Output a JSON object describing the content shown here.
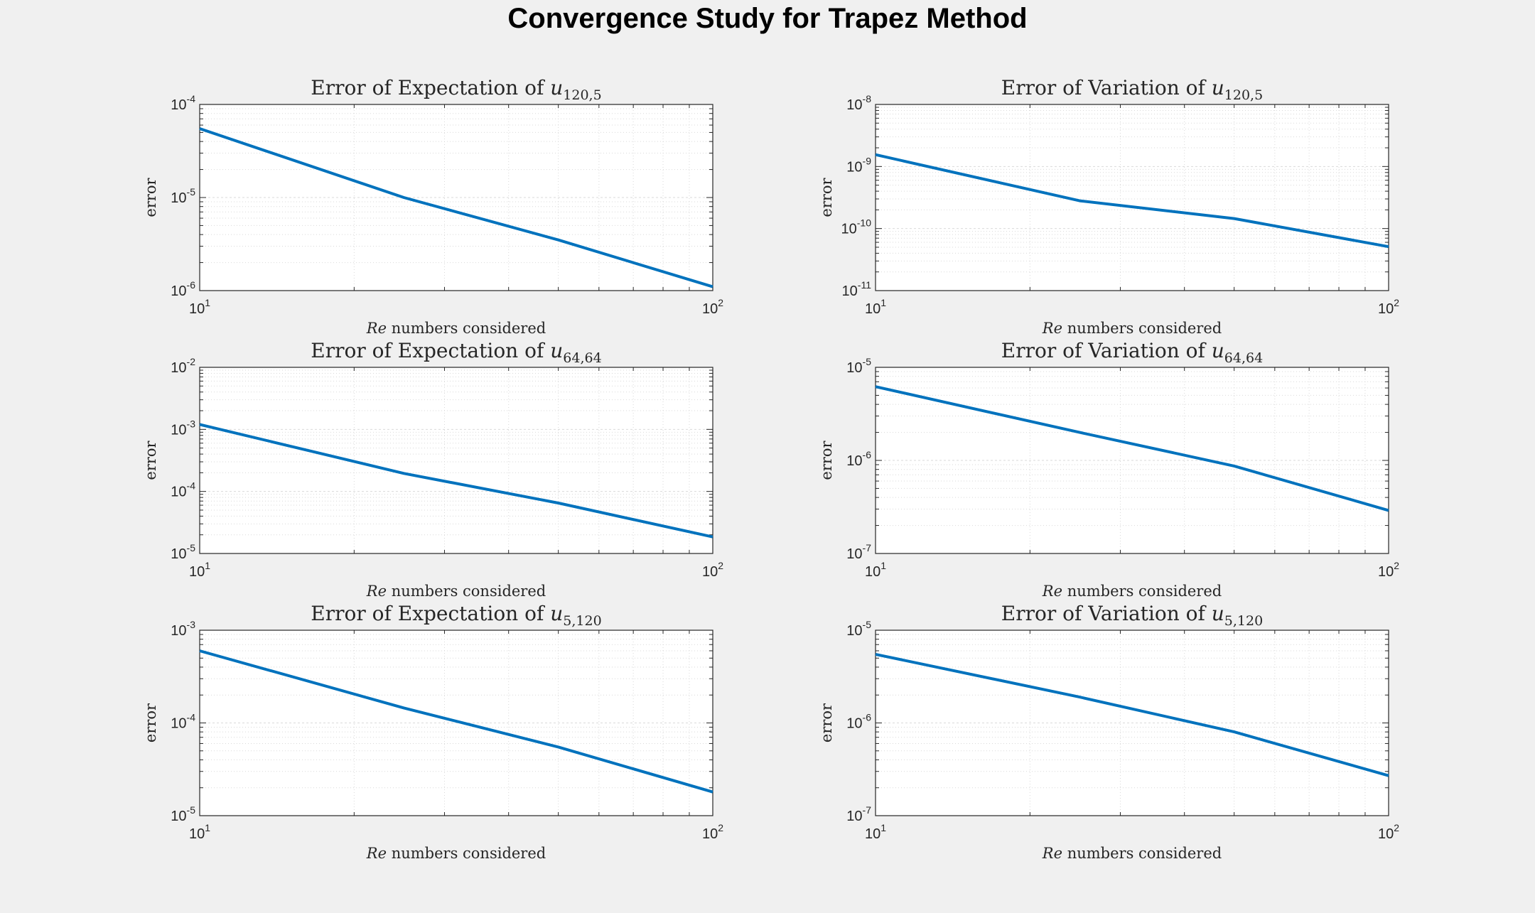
{
  "figure": {
    "title": "Convergence Study for Trapez Method"
  },
  "colors": {
    "background": "#f0f0f0",
    "axes_background": "#ffffff",
    "line": "#0072bd",
    "grid": "#d9d9d9",
    "axes_edge": "#262626"
  },
  "chart_data": [
    {
      "type": "line",
      "title_prefix": "Error of Expectation of ",
      "title_var": "u",
      "title_sub": "120,5",
      "xlabel_var": "Re",
      "xlabel_rest": " numbers considered",
      "ylabel": "error",
      "xscale": "log",
      "yscale": "log",
      "xlim": [
        10,
        100
      ],
      "ylim": [
        1e-06,
        0.0001
      ],
      "xticks": [
        {
          "base": "10",
          "exp": "1"
        },
        {
          "base": "10",
          "exp": "2"
        }
      ],
      "yticks": [
        {
          "base": "10",
          "exp": "-6"
        },
        {
          "base": "10",
          "exp": "-5"
        },
        {
          "base": "10",
          "exp": "-4"
        }
      ],
      "grid": true,
      "series": [
        {
          "x": [
            10,
            25,
            50,
            100
          ],
          "y": [
            5.5e-05,
            1e-05,
            3.5e-06,
            1.1e-06
          ]
        }
      ]
    },
    {
      "type": "line",
      "title_prefix": "Error of Variation of ",
      "title_var": "u",
      "title_sub": "120,5",
      "xlabel_var": "Re",
      "xlabel_rest": " numbers considered",
      "ylabel": "error",
      "xscale": "log",
      "yscale": "log",
      "xlim": [
        10,
        100
      ],
      "ylim": [
        1e-11,
        1e-08
      ],
      "xticks": [
        {
          "base": "10",
          "exp": "1"
        },
        {
          "base": "10",
          "exp": "2"
        }
      ],
      "yticks": [
        {
          "base": "10",
          "exp": "-11"
        },
        {
          "base": "10",
          "exp": "-10"
        },
        {
          "base": "10",
          "exp": "-9"
        },
        {
          "base": "10",
          "exp": "-8"
        }
      ],
      "grid": true,
      "series": [
        {
          "x": [
            10,
            25,
            50,
            100
          ],
          "y": [
            1.55e-09,
            2.8e-10,
            1.45e-10,
            5.1e-11
          ]
        }
      ]
    },
    {
      "type": "line",
      "title_prefix": "Error of Expectation of ",
      "title_var": "u",
      "title_sub": "64,64",
      "xlabel_var": "Re",
      "xlabel_rest": " numbers considered",
      "ylabel": "error",
      "xscale": "log",
      "yscale": "log",
      "xlim": [
        10,
        100
      ],
      "ylim": [
        1e-05,
        0.01
      ],
      "xticks": [
        {
          "base": "10",
          "exp": "1"
        },
        {
          "base": "10",
          "exp": "2"
        }
      ],
      "yticks": [
        {
          "base": "10",
          "exp": "-5"
        },
        {
          "base": "10",
          "exp": "-4"
        },
        {
          "base": "10",
          "exp": "-3"
        },
        {
          "base": "10",
          "exp": "-2"
        }
      ],
      "grid": true,
      "series": [
        {
          "x": [
            10,
            25,
            50,
            100
          ],
          "y": [
            0.0012,
            0.000195,
            6.5e-05,
            1.85e-05
          ]
        }
      ]
    },
    {
      "type": "line",
      "title_prefix": "Error of Variation of ",
      "title_var": "u",
      "title_sub": "64,64",
      "xlabel_var": "Re",
      "xlabel_rest": " numbers considered",
      "ylabel": "error",
      "xscale": "log",
      "yscale": "log",
      "xlim": [
        10,
        100
      ],
      "ylim": [
        1e-07,
        1e-05
      ],
      "xticks": [
        {
          "base": "10",
          "exp": "1"
        },
        {
          "base": "10",
          "exp": "2"
        }
      ],
      "yticks": [
        {
          "base": "10",
          "exp": "-7"
        },
        {
          "base": "10",
          "exp": "-6"
        },
        {
          "base": "10",
          "exp": "-5"
        }
      ],
      "grid": true,
      "series": [
        {
          "x": [
            10,
            25,
            50,
            100
          ],
          "y": [
            6.2e-06,
            2e-06,
            8.7e-07,
            2.9e-07
          ]
        }
      ]
    },
    {
      "type": "line",
      "title_prefix": "Error of Expectation of ",
      "title_var": "u",
      "title_sub": "5,120",
      "xlabel_var": "Re",
      "xlabel_rest": " numbers considered",
      "ylabel": "error",
      "xscale": "log",
      "yscale": "log",
      "xlim": [
        10,
        100
      ],
      "ylim": [
        1e-05,
        0.001
      ],
      "xticks": [
        {
          "base": "10",
          "exp": "1"
        },
        {
          "base": "10",
          "exp": "2"
        }
      ],
      "yticks": [
        {
          "base": "10",
          "exp": "-5"
        },
        {
          "base": "10",
          "exp": "-4"
        },
        {
          "base": "10",
          "exp": "-3"
        }
      ],
      "grid": true,
      "series": [
        {
          "x": [
            10,
            25,
            50,
            100
          ],
          "y": [
            0.0006,
            0.000145,
            5.5e-05,
            1.8e-05
          ]
        }
      ]
    },
    {
      "type": "line",
      "title_prefix": "Error of Variation of ",
      "title_var": "u",
      "title_sub": "5,120",
      "xlabel_var": "Re",
      "xlabel_rest": " numbers considered",
      "ylabel": "error",
      "xscale": "log",
      "yscale": "log",
      "xlim": [
        10,
        100
      ],
      "ylim": [
        1e-07,
        1e-05
      ],
      "xticks": [
        {
          "base": "10",
          "exp": "1"
        },
        {
          "base": "10",
          "exp": "2"
        }
      ],
      "yticks": [
        {
          "base": "10",
          "exp": "-7"
        },
        {
          "base": "10",
          "exp": "-6"
        },
        {
          "base": "10",
          "exp": "-5"
        }
      ],
      "grid": true,
      "series": [
        {
          "x": [
            10,
            25,
            50,
            100
          ],
          "y": [
            5.5e-06,
            1.9e-06,
            8e-07,
            2.7e-07
          ]
        }
      ]
    }
  ]
}
